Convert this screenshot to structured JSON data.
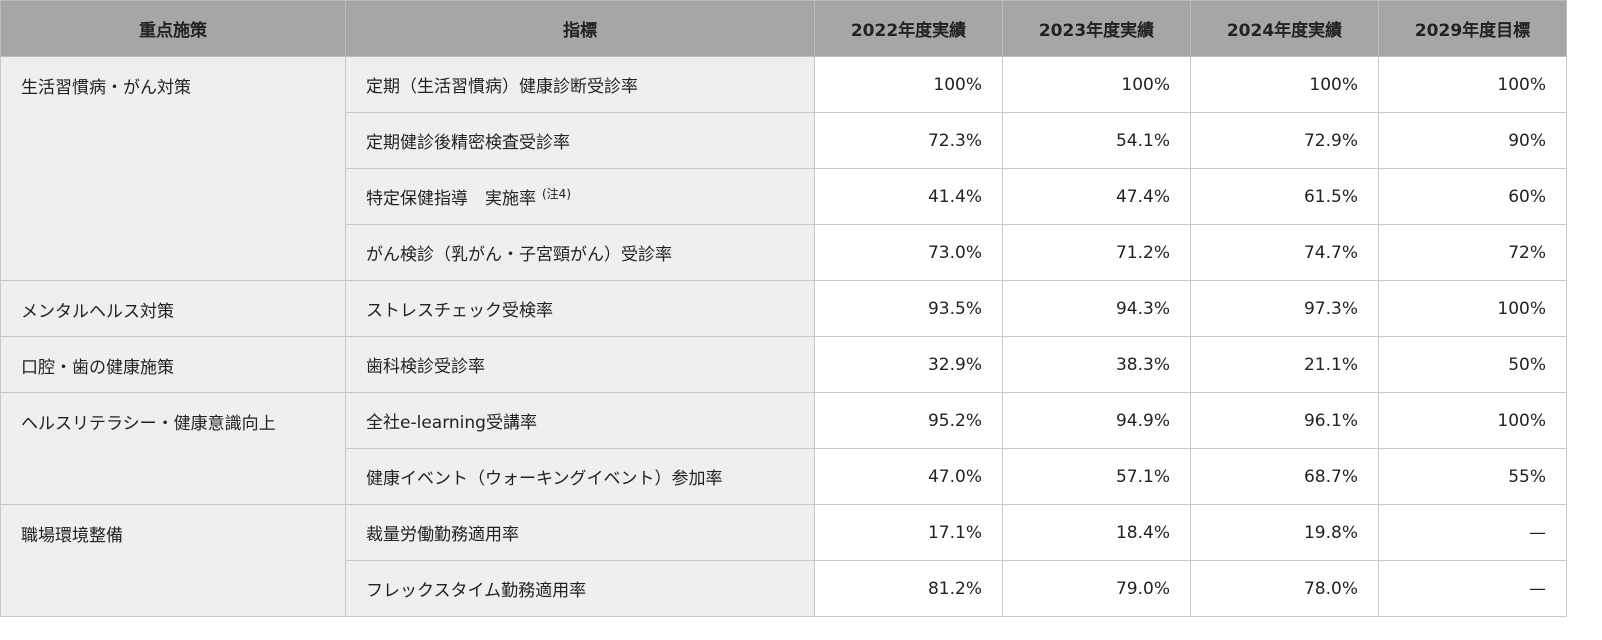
{
  "table": {
    "header": [
      "重点施策",
      "指標",
      "2022年度実績",
      "2023年度実績",
      "2024年度実績",
      "2029年度目標"
    ],
    "groups": [
      {
        "name": "生活習慣病・がん対策",
        "rows": [
          {
            "indicator": "定期（生活習慣病）健康診断受診率",
            "values": [
              "100%",
              "100%",
              "100%",
              "100%"
            ]
          },
          {
            "indicator": "定期健診後精密検査受診率",
            "values": [
              "72.3%",
              "54.1%",
              "72.9%",
              "90%"
            ]
          },
          {
            "indicator": "特定保健指導　実施率",
            "note": "(注4)",
            "values": [
              "41.4%",
              "47.4%",
              "61.5%",
              "60%"
            ]
          },
          {
            "indicator": "がん検診（乳がん・子宮頸がん）受診率",
            "values": [
              "73.0%",
              "71.2%",
              "74.7%",
              "72%"
            ]
          }
        ]
      },
      {
        "name": "メンタルヘルス対策",
        "rows": [
          {
            "indicator": "ストレスチェック受検率",
            "values": [
              "93.5%",
              "94.3%",
              "97.3%",
              "100%"
            ]
          }
        ]
      },
      {
        "name": "口腔・歯の健康施策",
        "rows": [
          {
            "indicator": "歯科検診受診率",
            "values": [
              "32.9%",
              "38.3%",
              "21.1%",
              "50%"
            ]
          }
        ]
      },
      {
        "name": "ヘルスリテラシー・健康意識向上",
        "rows": [
          {
            "indicator": "全社e-learning受講率",
            "values": [
              "95.2%",
              "94.9%",
              "96.1%",
              "100%"
            ]
          },
          {
            "indicator": "健康イベント（ウォーキングイベント）参加率",
            "values": [
              "47.0%",
              "57.1%",
              "68.7%",
              "55%"
            ]
          }
        ]
      },
      {
        "name": "職場環境整備",
        "rows": [
          {
            "indicator": "裁量労働勤務適用率",
            "values": [
              "17.1%",
              "18.4%",
              "19.8%",
              "—"
            ]
          },
          {
            "indicator": "フレックスタイム勤務適用率",
            "values": [
              "81.2%",
              "79.0%",
              "78.0%",
              "—"
            ]
          }
        ]
      }
    ]
  }
}
